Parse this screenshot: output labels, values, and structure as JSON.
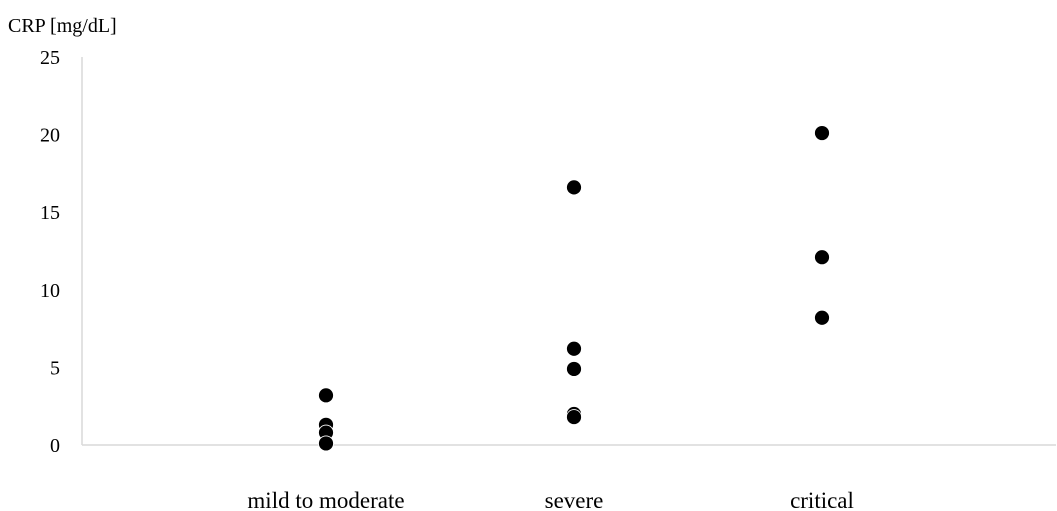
{
  "chart_data": {
    "type": "scatter",
    "title": "",
    "ylabel": "CRP [mg/dL]",
    "xlabel": "",
    "ylim": [
      0,
      25
    ],
    "yticks": [
      "0",
      "5",
      "10",
      "15",
      "20",
      "25"
    ],
    "grid": false,
    "categories": [
      "mild to moderate",
      "severe",
      "critical"
    ],
    "series": [
      {
        "points": [
          {
            "category": "mild to moderate",
            "y": 3.2
          },
          {
            "category": "mild to moderate",
            "y": 1.3
          },
          {
            "category": "mild to moderate",
            "y": 0.8
          },
          {
            "category": "mild to moderate",
            "y": 0.1
          },
          {
            "category": "severe",
            "y": 16.6
          },
          {
            "category": "severe",
            "y": 6.2
          },
          {
            "category": "severe",
            "y": 4.9
          },
          {
            "category": "severe",
            "y": 2.0
          },
          {
            "category": "severe",
            "y": 1.8
          },
          {
            "category": "critical",
            "y": 20.1
          },
          {
            "category": "critical",
            "y": 12.1
          },
          {
            "category": "critical",
            "y": 8.2
          }
        ]
      }
    ],
    "marker_color": "#000000",
    "axis_color": "#d9d9d9"
  }
}
